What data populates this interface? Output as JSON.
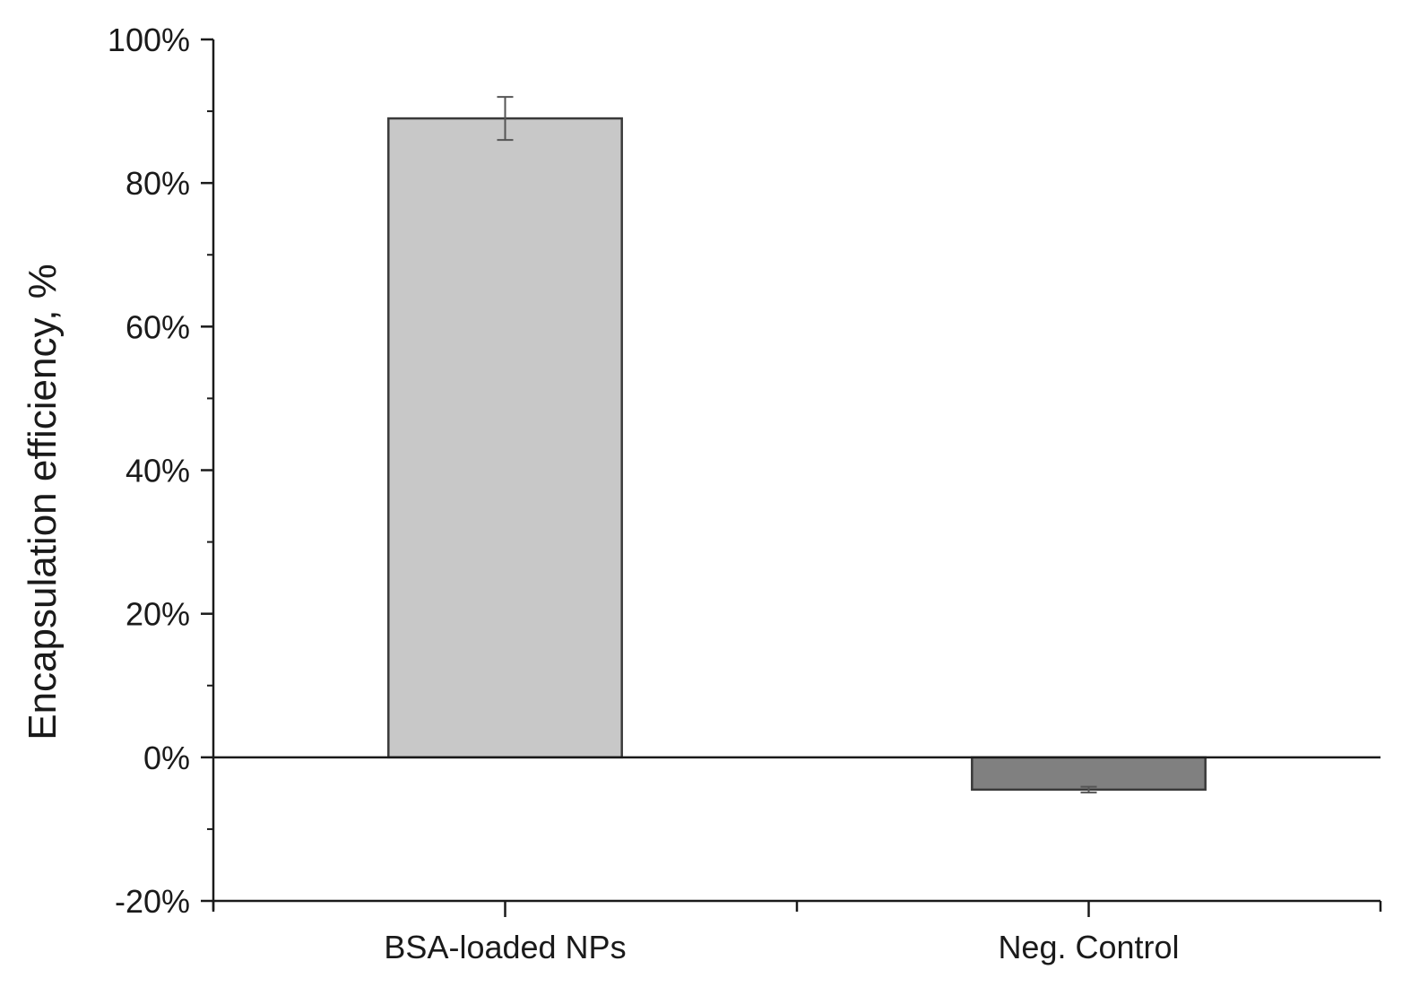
{
  "chart_data": {
    "type": "bar",
    "title": "",
    "xlabel": "",
    "ylabel": "Encapsulation efficiency, %",
    "categories": [
      "BSA-loaded NPs",
      "Neg. Control"
    ],
    "values": [
      89,
      -4.5
    ],
    "errors": [
      3,
      0.4
    ],
    "bar_colors": [
      "#c8c8c8",
      "#808080"
    ],
    "ylim": [
      -20,
      100
    ],
    "yticks": [
      -20,
      0,
      20,
      40,
      60,
      80,
      100
    ],
    "ytick_labels": [
      "-20%",
      "0%",
      "20%",
      "40%",
      "60%",
      "80%",
      "100%"
    ],
    "y_minor_step": 10,
    "zero_line": true,
    "grid": false,
    "legend": "none"
  }
}
